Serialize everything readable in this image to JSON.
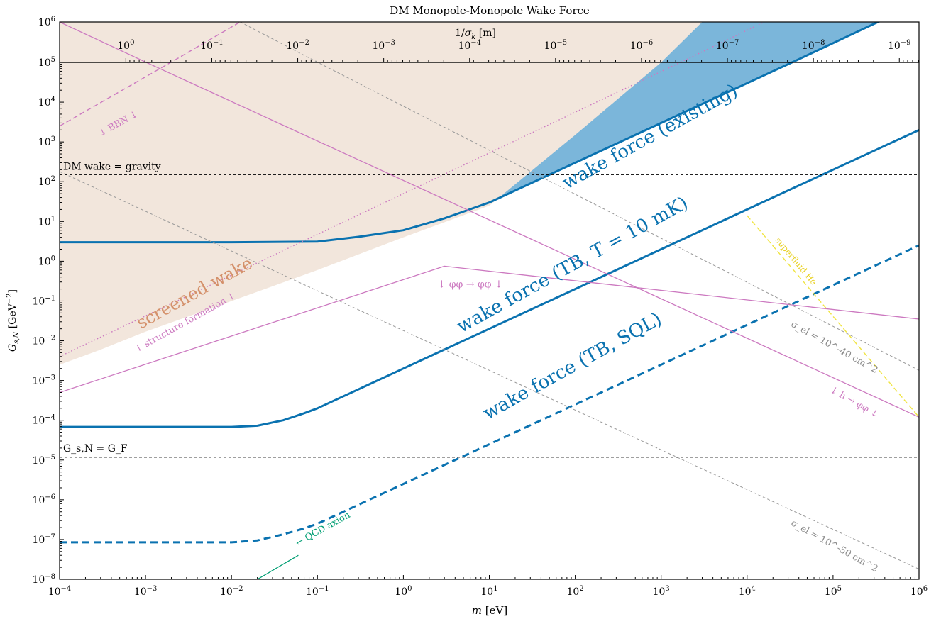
{
  "chart_data": {
    "type": "line",
    "title": "DM Monopole-Monopole Wake Force",
    "xlabel": "m [eV]",
    "ylabel": "G_{s,N} [GeV^-2]",
    "top_axis_label": "1/σ_k [m]",
    "xscale": "log",
    "yscale": "log",
    "xlim": [
      0.0001,
      1000000
    ],
    "ylim": [
      1e-08,
      1000000
    ],
    "top_panel_ylim": [
      100000,
      1000000
    ],
    "x_ticks": [
      {
        "v": 0.0001,
        "e": "-4"
      },
      {
        "v": 0.001,
        "e": "-3"
      },
      {
        "v": 0.01,
        "e": "-2"
      },
      {
        "v": 0.1,
        "e": "-1"
      },
      {
        "v": 1,
        "e": "0"
      },
      {
        "v": 10,
        "e": "1"
      },
      {
        "v": 100,
        "e": "2"
      },
      {
        "v": 1000,
        "e": "3"
      },
      {
        "v": 10000,
        "e": "4"
      },
      {
        "v": 100000,
        "e": "5"
      },
      {
        "v": 1000000,
        "e": "6"
      }
    ],
    "y_ticks": [
      {
        "v": 1e-08,
        "e": "-8"
      },
      {
        "v": 1e-07,
        "e": "-7"
      },
      {
        "v": 1e-06,
        "e": "-6"
      },
      {
        "v": 1e-05,
        "e": "-5"
      },
      {
        "v": 0.0001,
        "e": "-4"
      },
      {
        "v": 0.001,
        "e": "-3"
      },
      {
        "v": 0.01,
        "e": "-2"
      },
      {
        "v": 0.1,
        "e": "-1"
      },
      {
        "v": 1,
        "e": "0"
      },
      {
        "v": 10,
        "e": "1"
      },
      {
        "v": 100,
        "e": "2"
      },
      {
        "v": 1000,
        "e": "3"
      },
      {
        "v": 10000,
        "e": "4"
      },
      {
        "v": 100000,
        "e": "5"
      }
    ],
    "top_ticks": [
      {
        "m": 0.00059,
        "e": "0"
      },
      {
        "m": 0.0059,
        "e": "-1"
      },
      {
        "m": 0.059,
        "e": "-2"
      },
      {
        "m": 0.59,
        "e": "-3"
      },
      {
        "m": 5.9,
        "e": "-4"
      },
      {
        "m": 59,
        "e": "-5"
      },
      {
        "m": 590,
        "e": "-6"
      },
      {
        "m": 5900,
        "e": "-7"
      },
      {
        "m": 59000,
        "e": "-8"
      },
      {
        "m": 590000,
        "e": "-9"
      }
    ],
    "top_panel_ytick_labels": {
      "top": "10^6",
      "bottom": "10^5"
    },
    "series": [
      {
        "name": "wake force (existing)",
        "style": "solid-thick",
        "color": "#0a72b0",
        "x": [
          0.0001,
          0.01,
          0.1,
          0.3,
          1,
          3,
          10,
          100,
          1000,
          10000,
          100000,
          1000000
        ],
        "y": [
          3,
          3,
          3.1,
          4.1,
          6,
          12,
          30,
          300,
          3000,
          30000,
          300000,
          3000000
        ]
      },
      {
        "name": "wake force (TB, T = 10 mK)",
        "style": "solid-thick",
        "color": "#0a72b0",
        "x": [
          0.0001,
          0.01,
          0.02,
          0.04,
          0.07,
          0.1,
          1,
          10,
          100,
          1000,
          10000,
          100000,
          1000000
        ],
        "y": [
          6.8e-05,
          6.8e-05,
          7.3e-05,
          0.0001,
          0.00015,
          0.0002,
          0.002,
          0.02,
          0.2,
          2,
          20,
          200,
          2000
        ]
      },
      {
        "name": "wake force (TB, SQL)",
        "style": "dashed-thick",
        "color": "#0a72b0",
        "x": [
          0.0001,
          0.01,
          0.02,
          0.04,
          0.07,
          0.1,
          1,
          10,
          100,
          1000,
          10000,
          100000,
          1000000
        ],
        "y": [
          8.5e-08,
          8.5e-08,
          9.5e-08,
          1.35e-07,
          1.9e-07,
          2.5e-07,
          2.5e-06,
          2.5e-05,
          0.00025,
          0.0025,
          0.025,
          0.25,
          2.5
        ]
      },
      {
        "name": "φφ → φφ",
        "style": "solid",
        "color": "#cc79c0",
        "x": [
          0.0001,
          3,
          1000000
        ],
        "y": [
          0.0005,
          0.75,
          0.035
        ]
      },
      {
        "name": "h → φφ",
        "style": "solid",
        "color": "#cc79c0",
        "x": [
          0.0001,
          1000000
        ],
        "y": [
          1000000,
          0.00012
        ]
      },
      {
        "name": "BBN",
        "style": "dashed",
        "color": "#cc79c0",
        "x": [
          0.0001,
          0.0126
        ],
        "y": [
          2500,
          1000000
        ]
      },
      {
        "name": "structure formation",
        "style": "dotted",
        "color": "#cc79c0",
        "x": [
          0.0001,
          15800
        ],
        "y": [
          0.004,
          1000000
        ]
      },
      {
        "name": "σ_el = 10^-40 cm^2",
        "style": "dashed-thin",
        "color": "#999999",
        "x": [
          0.0126,
          1000000
        ],
        "y": [
          1000000,
          0.0018
        ]
      },
      {
        "name": "σ_el = 10^-50 cm^2",
        "style": "dashed-thin",
        "color": "#999999",
        "x": [
          0.0001,
          1000000
        ],
        "y": [
          180,
          1.8e-08
        ]
      },
      {
        "name": "superfluid He",
        "style": "dashed",
        "color": "#f0e442",
        "x": [
          10000,
          1000000
        ],
        "y": [
          14,
          0.00012
        ]
      },
      {
        "name": "QCD axion",
        "style": "solid",
        "color": "#009e73",
        "x": [
          0.02,
          0.06
        ],
        "y": [
          1e-08,
          4e-08
        ]
      },
      {
        "name": "DM wake = gravity",
        "style": "dashed-thin",
        "color": "#000000",
        "x": [
          0.0001,
          1000000
        ],
        "y": [
          150,
          150
        ]
      },
      {
        "name": "G_s,N = G_F",
        "style": "dashed-thin",
        "color": "#000000",
        "x": [
          0.0001,
          1000000
        ],
        "y": [
          1.17e-05,
          1.17e-05
        ]
      }
    ],
    "regions": [
      {
        "name": "screened wake",
        "color": "#f2e6dc",
        "x": [
          0.0001,
          0.0003,
          0.001,
          0.01,
          0.1,
          1,
          10,
          100,
          1000,
          3000
        ],
        "y": [
          0.0025,
          0.006,
          0.017,
          0.1,
          0.6,
          4,
          25,
          1500,
          100000,
          1000000
        ]
      },
      {
        "name": "wake force (existing) excluded",
        "color": "#7bb6da"
      }
    ],
    "annotations": [
      {
        "key": "existing",
        "text": "wake force (existing)"
      },
      {
        "key": "tb10mk",
        "text": "wake force (TB, T = 10 mK)"
      },
      {
        "key": "tbsql",
        "text": "wake force (TB, SQL)"
      },
      {
        "key": "screened",
        "text": "screened wake"
      },
      {
        "key": "bbn",
        "text": "↓ BBN ↓"
      },
      {
        "key": "structure",
        "text": "↓ structure formation ↓"
      },
      {
        "key": "phiphi",
        "text": "↓ φφ → φφ ↓"
      },
      {
        "key": "hphiphi",
        "text": "↓ h → φφ ↓"
      },
      {
        "key": "superfluid",
        "text": "superfluid He"
      },
      {
        "key": "qcd",
        "text": "← QCD axion"
      },
      {
        "key": "sigma40",
        "text": "σ_el = 10^-40 cm^2"
      },
      {
        "key": "sigma50",
        "text": "σ_el = 10^-50 cm^2"
      },
      {
        "key": "gravity",
        "text": "DM wake = gravity"
      },
      {
        "key": "gf",
        "text": "G_s,N = G_F"
      }
    ],
    "grid": false,
    "legend": "none"
  }
}
